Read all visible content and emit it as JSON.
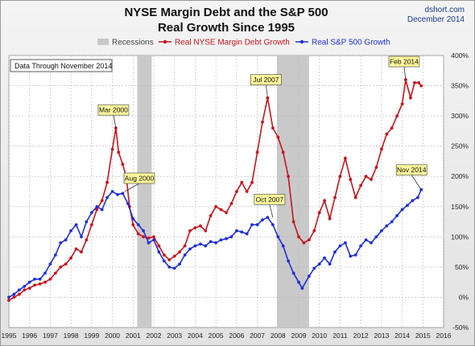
{
  "header": {
    "title_line1": "NYSE Margin Debt and the S&P 500",
    "title_line2": "Real Growth Since 1995",
    "source": "dshort.com",
    "date": "December 2014"
  },
  "data_note": "Data Through November 2014",
  "legend": {
    "recessions": "Recessions",
    "margin": "Real NYSE Margin Debt Growth",
    "sp500": "Real S&P 500 Growth"
  },
  "colors": {
    "margin": "#c8141c",
    "sp500": "#1f2fd6",
    "recession": "#c9c9c9",
    "callout_fill": "#fff79a",
    "grid": "#b8b8b8"
  },
  "chart_data": {
    "type": "line",
    "title": "NYSE Margin Debt and the S&P 500 Real Growth Since 1995",
    "xlim": [
      1995,
      2016
    ],
    "ylim": [
      -50,
      400
    ],
    "x_ticks": [
      1995,
      1996,
      1997,
      1998,
      1999,
      2000,
      2001,
      2002,
      2003,
      2004,
      2005,
      2006,
      2007,
      2008,
      2009,
      2010,
      2011,
      2012,
      2013,
      2014,
      2015,
      2016
    ],
    "y_ticks": [
      -50,
      0,
      50,
      100,
      150,
      200,
      250,
      300,
      350,
      400
    ],
    "y_tick_labels": [
      "-50%",
      "0%",
      "50%",
      "100%",
      "150%",
      "200%",
      "250%",
      "300%",
      "350%",
      "400%"
    ],
    "y_axis_side": "right",
    "grid": true,
    "legend_position": "top",
    "recessions": [
      [
        2001.2,
        2001.9
      ],
      [
        2007.95,
        2009.5
      ]
    ],
    "series": [
      {
        "name": "Real NYSE Margin Debt Growth",
        "color": "#c8141c",
        "x": [
          1995.0,
          1995.25,
          1995.5,
          1995.75,
          1996.0,
          1996.25,
          1996.5,
          1996.75,
          1997.0,
          1997.25,
          1997.5,
          1997.75,
          1998.0,
          1998.25,
          1998.5,
          1998.75,
          1999.0,
          1999.25,
          1999.5,
          1999.75,
          2000.0,
          2000.17,
          2000.3,
          2000.5,
          2000.67,
          2000.83,
          2001.0,
          2001.25,
          2001.5,
          2001.75,
          2002.0,
          2002.25,
          2002.5,
          2002.75,
          2003.0,
          2003.25,
          2003.5,
          2003.75,
          2004.0,
          2004.25,
          2004.5,
          2004.75,
          2005.0,
          2005.25,
          2005.5,
          2005.75,
          2006.0,
          2006.25,
          2006.5,
          2006.75,
          2007.0,
          2007.25,
          2007.5,
          2007.75,
          2008.0,
          2008.25,
          2008.5,
          2008.75,
          2009.0,
          2009.25,
          2009.5,
          2009.75,
          2010.0,
          2010.25,
          2010.5,
          2010.75,
          2011.0,
          2011.25,
          2011.5,
          2011.75,
          2012.0,
          2012.25,
          2012.5,
          2012.75,
          2013.0,
          2013.25,
          2013.5,
          2013.75,
          2014.0,
          2014.17,
          2014.4,
          2014.6,
          2014.8,
          2014.92
        ],
        "values": [
          -5,
          0,
          5,
          12,
          15,
          20,
          22,
          25,
          30,
          40,
          50,
          55,
          65,
          80,
          75,
          95,
          120,
          145,
          160,
          190,
          245,
          280,
          240,
          220,
          200,
          150,
          120,
          105,
          100,
          98,
          100,
          85,
          70,
          62,
          68,
          75,
          85,
          110,
          115,
          118,
          110,
          135,
          150,
          145,
          140,
          155,
          175,
          190,
          175,
          190,
          240,
          290,
          330,
          280,
          265,
          240,
          200,
          125,
          100,
          90,
          95,
          110,
          140,
          160,
          130,
          165,
          200,
          230,
          195,
          165,
          185,
          200,
          195,
          215,
          245,
          270,
          280,
          300,
          320,
          360,
          330,
          355,
          355,
          350
        ]
      },
      {
        "name": "Real S&P 500 Growth",
        "color": "#1f2fd6",
        "x": [
          1995.0,
          1995.25,
          1995.5,
          1995.75,
          1996.0,
          1996.25,
          1996.5,
          1996.75,
          1997.0,
          1997.25,
          1997.5,
          1997.75,
          1998.0,
          1998.25,
          1998.5,
          1998.75,
          1999.0,
          1999.25,
          1999.5,
          1999.75,
          2000.0,
          2000.25,
          2000.5,
          2000.75,
          2001.0,
          2001.25,
          2001.5,
          2001.75,
          2002.0,
          2002.25,
          2002.5,
          2002.75,
          2003.0,
          2003.25,
          2003.5,
          2003.75,
          2004.0,
          2004.25,
          2004.5,
          2004.75,
          2005.0,
          2005.25,
          2005.5,
          2005.75,
          2006.0,
          2006.25,
          2006.5,
          2006.75,
          2007.0,
          2007.25,
          2007.5,
          2007.75,
          2008.0,
          2008.25,
          2008.5,
          2008.75,
          2009.0,
          2009.17,
          2009.5,
          2009.75,
          2010.0,
          2010.25,
          2010.5,
          2010.75,
          2011.0,
          2011.25,
          2011.5,
          2011.75,
          2012.0,
          2012.25,
          2012.5,
          2012.75,
          2013.0,
          2013.25,
          2013.5,
          2013.75,
          2014.0,
          2014.25,
          2014.5,
          2014.75,
          2014.92
        ],
        "values": [
          0,
          5,
          12,
          18,
          25,
          30,
          30,
          40,
          55,
          70,
          90,
          95,
          110,
          120,
          100,
          125,
          140,
          150,
          145,
          165,
          175,
          170,
          172,
          155,
          130,
          120,
          110,
          90,
          95,
          75,
          60,
          50,
          48,
          55,
          70,
          80,
          85,
          88,
          85,
          92,
          90,
          95,
          97,
          100,
          110,
          108,
          105,
          120,
          120,
          128,
          132,
          120,
          100,
          85,
          60,
          40,
          25,
          15,
          35,
          48,
          55,
          65,
          55,
          75,
          85,
          90,
          68,
          70,
          85,
          95,
          90,
          100,
          110,
          118,
          125,
          135,
          145,
          152,
          160,
          165,
          178
        ]
      }
    ],
    "annotations": [
      {
        "text": "Mar 2000",
        "x": 2000.17,
        "y": 280,
        "series": "Real NYSE Margin Debt Growth"
      },
      {
        "text": "Aug 2000",
        "x": 2000.6,
        "y": 175,
        "series": "Real S&P 500 Growth"
      },
      {
        "text": "Jul 2007",
        "x": 2007.5,
        "y": 330,
        "series": "Real NYSE Margin Debt Growth"
      },
      {
        "text": "Oct 2007",
        "x": 2007.75,
        "y": 132,
        "series": "Real S&P 500 Growth"
      },
      {
        "text": "Feb 2014",
        "x": 2014.17,
        "y": 360,
        "series": "Real NYSE Margin Debt Growth"
      },
      {
        "text": "Nov 2014",
        "x": 2014.92,
        "y": 178,
        "series": "Real S&P 500 Growth"
      }
    ]
  }
}
